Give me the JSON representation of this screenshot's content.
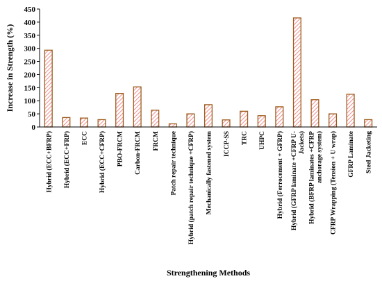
{
  "chart_data": {
    "type": "bar",
    "title": "",
    "xlabel": "Strengthening Methods",
    "ylabel": "Increase in Strength (%)",
    "ylim": [
      0,
      450
    ],
    "yticks": [
      0,
      50,
      100,
      150,
      200,
      250,
      300,
      350,
      400,
      450
    ],
    "grid": false,
    "legend": "none",
    "bar_style": {
      "fill_hatch": "#f4a0a0",
      "stroke": "#9c5b1c"
    },
    "categories": [
      [
        "Hybrid (ECC+BFRP)"
      ],
      [
        "Hybrid (ECC+FRP)"
      ],
      [
        "ECC"
      ],
      [
        "Hybrid (ECC+CFRP)"
      ],
      [
        "PBO-FRCM"
      ],
      [
        "Carbon-FRCM"
      ],
      [
        "FRCM"
      ],
      [
        "Patch repair technique"
      ],
      [
        "Hybrid (patch repair technique +CFRP)"
      ],
      [
        "Mechanically fastened system"
      ],
      [
        "ICCP-SS"
      ],
      [
        "TRC"
      ],
      [
        "UHPC"
      ],
      [
        "Hybrid (Ferrocement + GFRP)"
      ],
      [
        "Hybrid (GFRP laminate +CFRP U-",
        "Jackets)"
      ],
      [
        "Hybrid (BFRP laminates +CFRP",
        "anchorage system)"
      ],
      [
        "CFRP Wrapping (Tension + U wrap)"
      ],
      [
        "GFRP Laminate"
      ],
      [
        "Steel Jacketing"
      ]
    ],
    "values": [
      293,
      36,
      34,
      28,
      128,
      153,
      64,
      12,
      50,
      85,
      27,
      60,
      43,
      77,
      416,
      104,
      50,
      125,
      28
    ]
  }
}
